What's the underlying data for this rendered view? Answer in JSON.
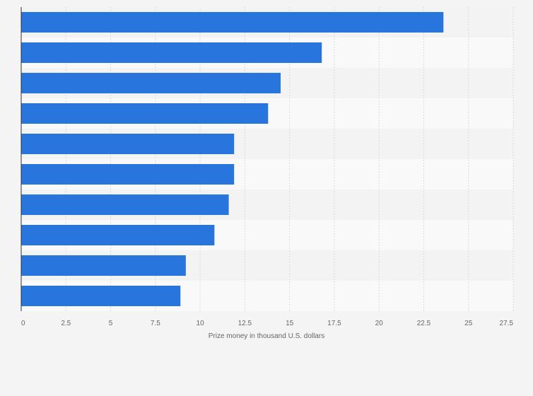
{
  "chart_data": {
    "type": "bar",
    "orientation": "horizontal",
    "categories": [
      "",
      "",
      "",
      "",
      "",
      "",
      "",
      "",
      "",
      ""
    ],
    "values": [
      23.6,
      16.8,
      14.5,
      13.8,
      11.9,
      11.9,
      11.6,
      10.8,
      9.2,
      8.9
    ],
    "title": "",
    "xlabel": "Prize money in thousand U.S. dollars",
    "ylabel": "",
    "xlim": [
      0,
      27.5
    ],
    "xticks": [
      0,
      2.5,
      5,
      7.5,
      10,
      12.5,
      15,
      17.5,
      20,
      22.5,
      25,
      27.5
    ],
    "xtick_labels": [
      "0",
      "2.5",
      "5",
      "7.5",
      "10",
      "12.5",
      "15",
      "17.5",
      "20",
      "22.5",
      "25",
      "27.5"
    ],
    "grid": true,
    "legend": "none",
    "colors": {
      "bar": "#2876dd",
      "background": "#f4f4f4",
      "band_light": "#f9f9f9",
      "band_dark": "#f3f3f3",
      "gridline": "#dadada",
      "axis": "#333333",
      "text": "#666666"
    }
  }
}
